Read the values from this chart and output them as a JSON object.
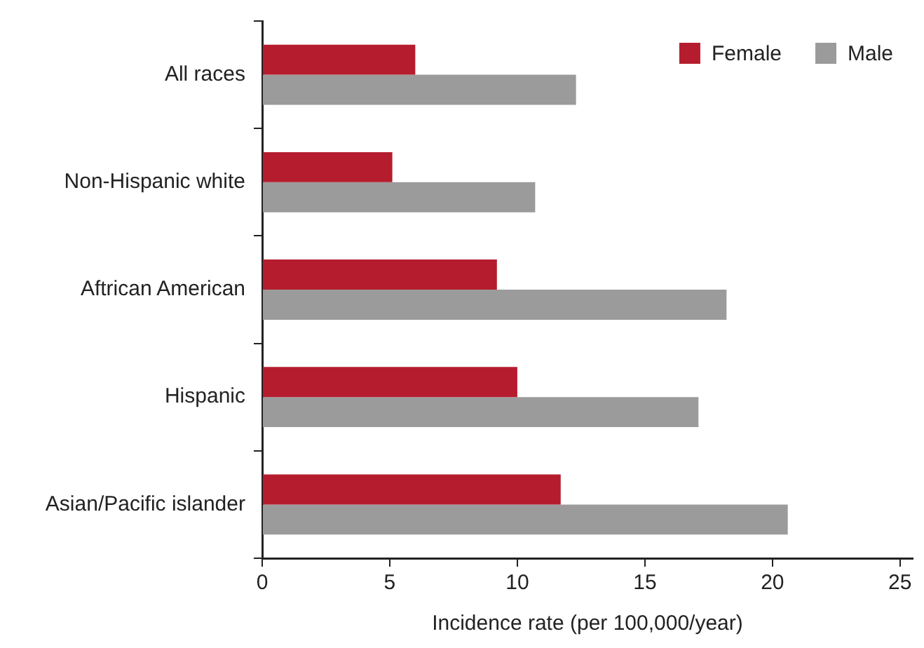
{
  "chart_data": {
    "type": "bar",
    "orientation": "horizontal",
    "xlabel": "Incidence rate (per 100,000/year)",
    "categories": [
      "All races",
      "Non-Hispanic white",
      "Aftrican American",
      "Hispanic",
      "Asian/Pacific islander"
    ],
    "series": [
      {
        "name": "Female",
        "color": "#b51d2e",
        "values": [
          6.0,
          5.1,
          9.2,
          10.0,
          11.7
        ]
      },
      {
        "name": "Male",
        "color": "#9b9b9c",
        "values": [
          12.3,
          10.7,
          18.2,
          17.1,
          20.6
        ]
      }
    ],
    "xlim": [
      0,
      25.5
    ],
    "xticks": [
      0,
      5,
      10,
      15,
      20,
      25
    ],
    "grid": false,
    "legend": "top right"
  }
}
